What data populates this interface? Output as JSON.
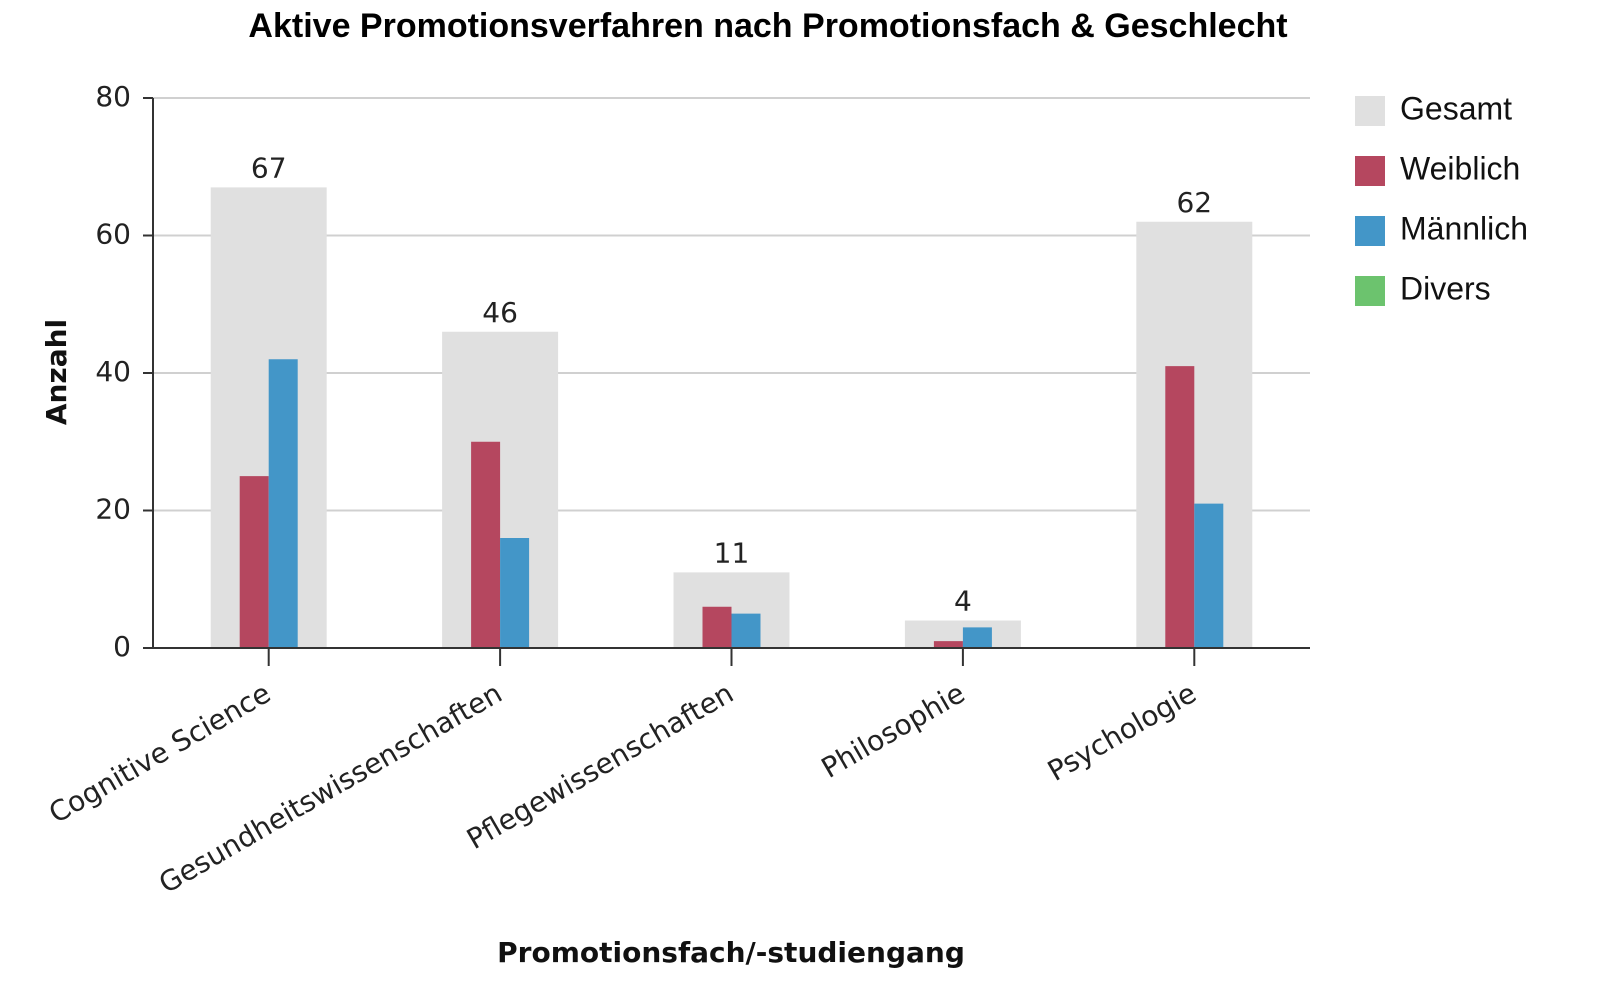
{
  "chart_data": {
    "type": "bar",
    "title": "Aktive Promotionsverfahren nach Promotionsfach & Geschlecht",
    "x_label": "Promotionsfach/-studiengang",
    "y_label": "Anzahl",
    "categories": [
      "Cognitive Science",
      "Gesundheitswissenschaften",
      "Pflegewissenschaften",
      "Philosophie",
      "Psychologie"
    ],
    "series": [
      {
        "name": "Gesamt",
        "color": "#e0e0e0",
        "values": [
          67,
          46,
          11,
          4,
          62
        ]
      },
      {
        "name": "Weiblich",
        "color": "#b5475f",
        "values": [
          25,
          30,
          6,
          1,
          41
        ]
      },
      {
        "name": "Männlich",
        "color": "#4396c8",
        "values": [
          42,
          16,
          5,
          3,
          21
        ]
      },
      {
        "name": "Divers",
        "color": "#6cc36e",
        "values": [
          0,
          0,
          0,
          0,
          0
        ]
      }
    ],
    "ylim": [
      0,
      80
    ],
    "yticks": [
      0,
      20,
      40,
      60,
      80
    ],
    "grid": true,
    "legend": "right"
  }
}
